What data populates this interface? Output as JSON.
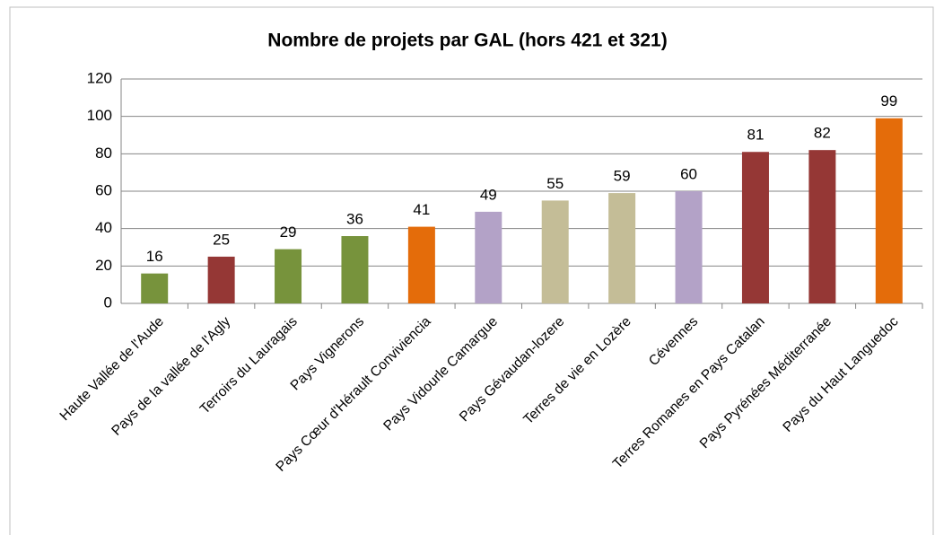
{
  "chart_data": {
    "type": "bar",
    "title": "Nombre de projets par GAL (hors 421 et 321)",
    "categories": [
      "Haute Vallée de l'Aude",
      "Pays de la vallée de l'Agly",
      "Terroirs du Lauragais",
      "Pays Vignerons",
      "Pays Cœur d'Hérault Conviviencia",
      "Pays Vidourle Camargue",
      "Pays Gévaudan-lozere",
      "Terres de vie en Lozère",
      "Cévennes",
      "Terres Romanes en Pays Catalan",
      "Pays Pyrénées Méditerranée",
      "Pays du Haut Languedoc"
    ],
    "values": [
      16,
      25,
      29,
      36,
      41,
      49,
      55,
      59,
      60,
      81,
      82,
      99
    ],
    "colors": [
      "#77933c",
      "#953735",
      "#77933c",
      "#77933c",
      "#e46c0a",
      "#b3a2c7",
      "#c4bd97",
      "#c4bd97",
      "#b3a2c7",
      "#953735",
      "#953735",
      "#e46c0a"
    ],
    "ylim": [
      0,
      120
    ],
    "yticks": [
      0,
      20,
      40,
      60,
      80,
      100,
      120
    ],
    "grid": true
  }
}
